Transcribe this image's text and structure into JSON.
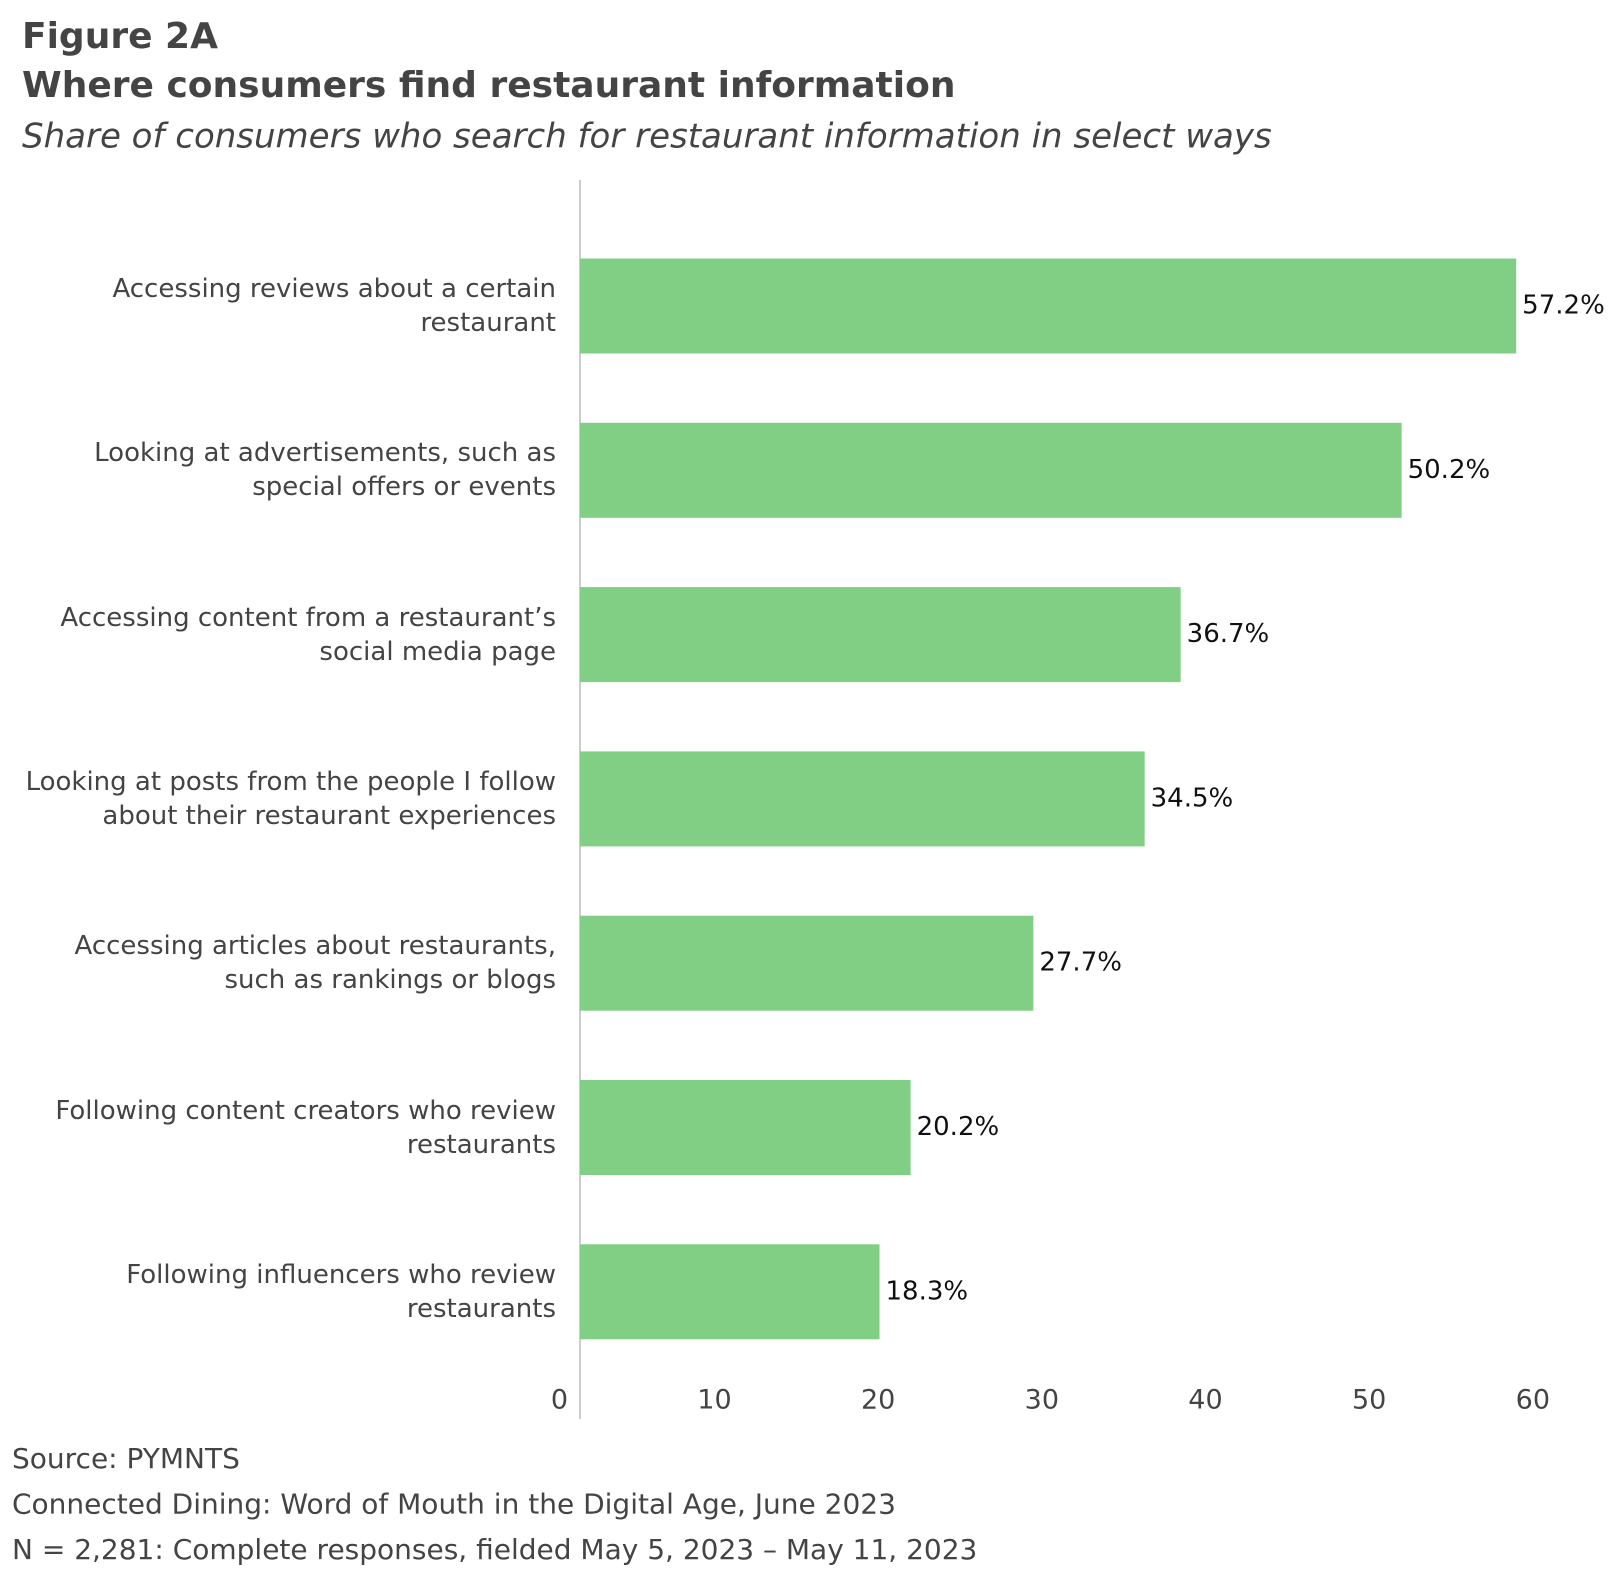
{
  "chart_data": {
    "type": "hbar",
    "figure_label": "Figure 2A",
    "title": "Where consumers find restaurant information",
    "subtitle": "Share of consumers who search for restaurant information in select ways",
    "categories": [
      "Accessing reviews about a certain restaurant",
      "Looking at advertisements, such as special offers or events",
      "Accessing content from a restaurant’s social media page",
      "Looking at posts from the people I follow about their restaurant experiences",
      "Accessing articles about restaurants, such as rankings or blogs",
      "Following content creators who review restaurants",
      "Following influencers who review restaurants"
    ],
    "values": [
      57.2,
      50.2,
      36.7,
      34.5,
      27.7,
      20.2,
      18.3
    ],
    "value_labels": [
      "57.2%",
      "50.2%",
      "36.7%",
      "34.5%",
      "27.7%",
      "20.2%",
      "18.3%"
    ],
    "color": "#80cf84",
    "xlim": [
      0,
      60
    ],
    "xticks": [
      0,
      10,
      20,
      30,
      40,
      50,
      60
    ],
    "grid": false,
    "footnotes": [
      "Source: PYMNTS",
      "Connected Dining: Word of Mouth in the Digital Age, June 2023",
      "N = 2,281: Complete responses, fielded May 5, 2023 – May 11, 2023"
    ]
  }
}
